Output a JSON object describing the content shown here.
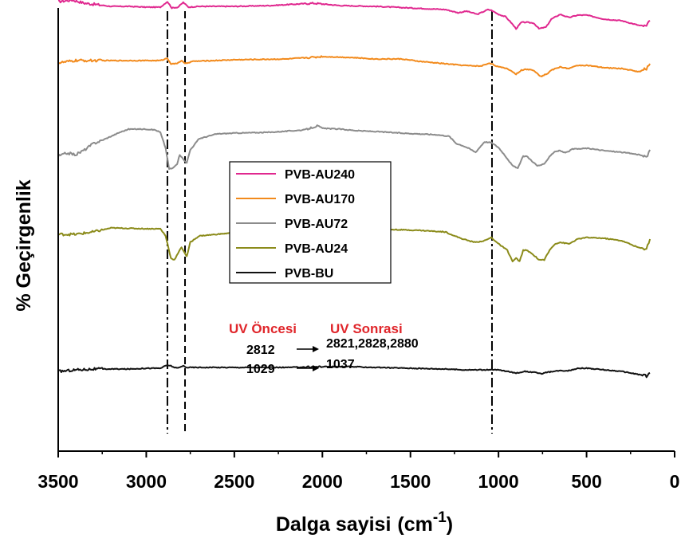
{
  "chart_data": {
    "type": "line",
    "xlabel": "Dalga sayisi",
    "xlabel_unit_prefix": "(cm",
    "xlabel_unit_exp": "-1",
    "xlabel_unit_suffix": ")",
    "ylabel": "% Geçirgenlik",
    "xlim": [
      3500,
      0
    ],
    "x_reversed": true,
    "xticks": [
      3500,
      3000,
      2500,
      2000,
      1500,
      1000,
      500,
      0
    ],
    "xtick_labels": [
      "3500",
      "3000",
      "2500",
      "2000",
      "1500",
      "1000",
      "500",
      "0"
    ],
    "y_ticks_shown": false,
    "grid": false,
    "legend_placement": "center-left",
    "reference_lines": [
      {
        "x": 2880,
        "style": "dash-dot"
      },
      {
        "x": 2780,
        "style": "dashed"
      },
      {
        "x": 1037,
        "style": "dash-dot"
      }
    ],
    "annotations": {
      "before_label": "UV Öncesi",
      "after_label": "UV Sonrasi",
      "rows": [
        {
          "before": "2812",
          "after": "2821,2828,2880"
        },
        {
          "before": "1029",
          "after": "1037"
        }
      ]
    },
    "series": [
      {
        "name": "PVB-AU240",
        "color": "#e0288f",
        "offset": 560,
        "points": [
          [
            3500,
            4
          ],
          [
            3420,
            6
          ],
          [
            3350,
            2
          ],
          [
            3200,
            -2
          ],
          [
            3100,
            -2
          ],
          [
            3000,
            -3
          ],
          [
            2920,
            -3
          ],
          [
            2880,
            4
          ],
          [
            2855,
            -4
          ],
          [
            2820,
            -3
          ],
          [
            2790,
            3
          ],
          [
            2760,
            -3
          ],
          [
            2700,
            -2
          ],
          [
            2500,
            -2
          ],
          [
            2300,
            -1
          ],
          [
            2050,
            2
          ],
          [
            1900,
            -1
          ],
          [
            1700,
            -2
          ],
          [
            1500,
            -4
          ],
          [
            1300,
            -6
          ],
          [
            1230,
            -10
          ],
          [
            1180,
            -8
          ],
          [
            1120,
            -12
          ],
          [
            1060,
            -6
          ],
          [
            1040,
            -7
          ],
          [
            1000,
            -12
          ],
          [
            960,
            -15
          ],
          [
            930,
            -22
          ],
          [
            900,
            -30
          ],
          [
            870,
            -22
          ],
          [
            840,
            -22
          ],
          [
            800,
            -23
          ],
          [
            770,
            -30
          ],
          [
            730,
            -28
          ],
          [
            700,
            -18
          ],
          [
            650,
            -12
          ],
          [
            600,
            -16
          ],
          [
            550,
            -13
          ],
          [
            500,
            -13
          ],
          [
            400,
            -18
          ],
          [
            300,
            -20
          ],
          [
            200,
            -26
          ],
          [
            160,
            -27
          ],
          [
            140,
            -20
          ]
        ]
      },
      {
        "name": "PVB-AU170",
        "color": "#f28a1c",
        "offset": 490,
        "points": [
          [
            3500,
            -3
          ],
          [
            3400,
            0
          ],
          [
            3200,
            0
          ],
          [
            3000,
            0
          ],
          [
            2920,
            0
          ],
          [
            2880,
            3
          ],
          [
            2860,
            -4
          ],
          [
            2830,
            -4
          ],
          [
            2800,
            0
          ],
          [
            2780,
            -4
          ],
          [
            2740,
            -1
          ],
          [
            2500,
            1
          ],
          [
            2200,
            2
          ],
          [
            2000,
            5
          ],
          [
            1850,
            4
          ],
          [
            1700,
            2
          ],
          [
            1550,
            2
          ],
          [
            1450,
            -1
          ],
          [
            1300,
            -4
          ],
          [
            1200,
            -6
          ],
          [
            1100,
            -7
          ],
          [
            1050,
            -3
          ],
          [
            1000,
            -8
          ],
          [
            950,
            -10
          ],
          [
            920,
            -14
          ],
          [
            900,
            -17
          ],
          [
            870,
            -12
          ],
          [
            840,
            -11
          ],
          [
            800,
            -12
          ],
          [
            760,
            -20
          ],
          [
            720,
            -16
          ],
          [
            700,
            -12
          ],
          [
            650,
            -8
          ],
          [
            600,
            -10
          ],
          [
            550,
            -6
          ],
          [
            500,
            -6
          ],
          [
            400,
            -9
          ],
          [
            300,
            -10
          ],
          [
            200,
            -14
          ],
          [
            160,
            -10
          ],
          [
            140,
            -4
          ]
        ]
      },
      {
        "name": "PVB-AU72",
        "color": "#8c8c8c",
        "offset": 400,
        "points": [
          [
            3500,
            -30
          ],
          [
            3450,
            -26
          ],
          [
            3400,
            -28
          ],
          [
            3350,
            -22
          ],
          [
            3300,
            -14
          ],
          [
            3250,
            -10
          ],
          [
            3150,
            0
          ],
          [
            3100,
            4
          ],
          [
            3000,
            4
          ],
          [
            2950,
            3
          ],
          [
            2920,
            0
          ],
          [
            2890,
            -20
          ],
          [
            2870,
            -46
          ],
          [
            2850,
            -45
          ],
          [
            2825,
            -40
          ],
          [
            2810,
            -28
          ],
          [
            2790,
            -34
          ],
          [
            2770,
            -38
          ],
          [
            2750,
            -22
          ],
          [
            2700,
            -8
          ],
          [
            2600,
            -2
          ],
          [
            2500,
            -1
          ],
          [
            2300,
            0
          ],
          [
            2100,
            3
          ],
          [
            2030,
            8
          ],
          [
            2000,
            5
          ],
          [
            1900,
            4
          ],
          [
            1800,
            2
          ],
          [
            1700,
            1
          ],
          [
            1550,
            -1
          ],
          [
            1450,
            -2
          ],
          [
            1350,
            -3
          ],
          [
            1280,
            -5
          ],
          [
            1240,
            -14
          ],
          [
            1200,
            -17
          ],
          [
            1170,
            -20
          ],
          [
            1130,
            -25
          ],
          [
            1080,
            -12
          ],
          [
            1040,
            -13
          ],
          [
            1000,
            -19
          ],
          [
            960,
            -30
          ],
          [
            920,
            -42
          ],
          [
            890,
            -45
          ],
          [
            860,
            -30
          ],
          [
            840,
            -30
          ],
          [
            810,
            -36
          ],
          [
            780,
            -42
          ],
          [
            740,
            -40
          ],
          [
            710,
            -30
          ],
          [
            680,
            -24
          ],
          [
            650,
            -23
          ],
          [
            620,
            -26
          ],
          [
            580,
            -21
          ],
          [
            550,
            -21
          ],
          [
            500,
            -20
          ],
          [
            400,
            -23
          ],
          [
            300,
            -25
          ],
          [
            200,
            -28
          ],
          [
            160,
            -32
          ],
          [
            140,
            -22
          ]
        ]
      },
      {
        "name": "PVB-AU24",
        "color": "#8b8b1a",
        "offset": 280,
        "points": [
          [
            3500,
            -8
          ],
          [
            3400,
            -8
          ],
          [
            3300,
            -5
          ],
          [
            3200,
            0
          ],
          [
            3000,
            -1
          ],
          [
            2920,
            -1
          ],
          [
            2890,
            -10
          ],
          [
            2860,
            -38
          ],
          [
            2840,
            -40
          ],
          [
            2820,
            -32
          ],
          [
            2800,
            -24
          ],
          [
            2790,
            -28
          ],
          [
            2770,
            -36
          ],
          [
            2750,
            -18
          ],
          [
            2700,
            -10
          ],
          [
            2600,
            -8
          ],
          [
            2500,
            -6
          ],
          [
            2300,
            -4
          ],
          [
            2100,
            -2
          ],
          [
            2000,
            2
          ],
          [
            1900,
            0
          ],
          [
            1800,
            -1
          ],
          [
            1600,
            -2
          ],
          [
            1450,
            -3
          ],
          [
            1300,
            -5
          ],
          [
            1250,
            -10
          ],
          [
            1200,
            -14
          ],
          [
            1170,
            -16
          ],
          [
            1130,
            -18
          ],
          [
            1080,
            -16
          ],
          [
            1040,
            -12
          ],
          [
            1000,
            -20
          ],
          [
            950,
            -28
          ],
          [
            920,
            -42
          ],
          [
            900,
            -38
          ],
          [
            880,
            -42
          ],
          [
            860,
            -28
          ],
          [
            840,
            -28
          ],
          [
            800,
            -34
          ],
          [
            770,
            -40
          ],
          [
            740,
            -40
          ],
          [
            710,
            -28
          ],
          [
            680,
            -20
          ],
          [
            650,
            -18
          ],
          [
            600,
            -20
          ],
          [
            550,
            -14
          ],
          [
            500,
            -12
          ],
          [
            400,
            -13
          ],
          [
            300,
            -16
          ],
          [
            200,
            -25
          ],
          [
            160,
            -26
          ],
          [
            140,
            -14
          ]
        ]
      },
      {
        "name": "PVB-BU",
        "color": "#111111",
        "offset": 104,
        "points": [
          [
            3500,
            -4
          ],
          [
            3400,
            -2
          ],
          [
            3300,
            -1
          ],
          [
            3100,
            -1
          ],
          [
            3000,
            0
          ],
          [
            2920,
            0
          ],
          [
            2880,
            4
          ],
          [
            2860,
            3
          ],
          [
            2840,
            1
          ],
          [
            2820,
            0
          ],
          [
            2790,
            3
          ],
          [
            2770,
            1
          ],
          [
            2700,
            1
          ],
          [
            2500,
            1
          ],
          [
            2200,
            1
          ],
          [
            2000,
            2
          ],
          [
            1850,
            2
          ],
          [
            1700,
            1
          ],
          [
            1500,
            0
          ],
          [
            1300,
            -1
          ],
          [
            1200,
            -2
          ],
          [
            1100,
            -2
          ],
          [
            1000,
            -2
          ],
          [
            950,
            -4
          ],
          [
            900,
            -6
          ],
          [
            850,
            -4
          ],
          [
            800,
            -5
          ],
          [
            760,
            -7
          ],
          [
            720,
            -5
          ],
          [
            650,
            -3
          ],
          [
            600,
            -3
          ],
          [
            550,
            0
          ],
          [
            500,
            0
          ],
          [
            400,
            -2
          ],
          [
            300,
            -4
          ],
          [
            200,
            -8
          ],
          [
            160,
            -10
          ],
          [
            140,
            -6
          ]
        ]
      }
    ]
  }
}
